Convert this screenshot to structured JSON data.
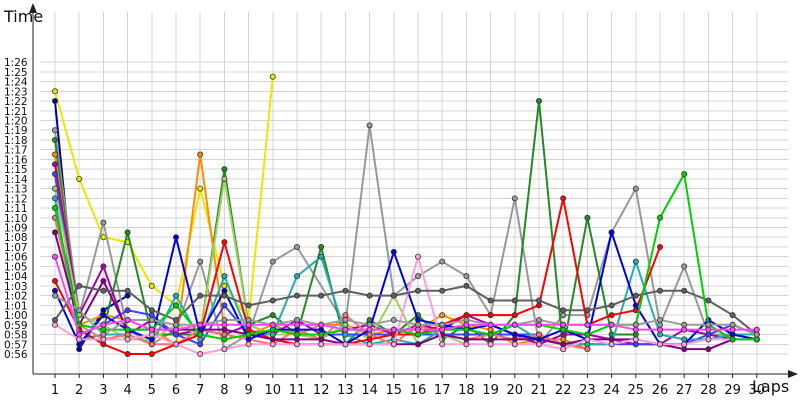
{
  "chart_data": {
    "type": "line",
    "xlabel": "Laps",
    "ylabel": "Time",
    "x": [
      1,
      2,
      3,
      4,
      5,
      6,
      7,
      8,
      9,
      10,
      11,
      12,
      13,
      14,
      15,
      16,
      17,
      18,
      19,
      20,
      21,
      22,
      23,
      24,
      25,
      26,
      27,
      28,
      29,
      30
    ],
    "x_tick_labels": [
      "1",
      "2",
      "3",
      "4",
      "5",
      "6",
      "7",
      "8",
      "9",
      "10",
      "11",
      "12",
      "13",
      "14",
      "15",
      "16",
      "17",
      "18",
      "19",
      "20",
      "21",
      "22",
      "23",
      "24",
      "25",
      "26",
      "27",
      "28",
      "29",
      "30"
    ],
    "y_tick_labels": [
      "0:56",
      "0:57",
      "0:58",
      "0:59",
      "1:00",
      "1:01",
      "1:02",
      "1:03",
      "1:04",
      "1:05",
      "1:06",
      "1:07",
      "1:08",
      "1:09",
      "1:10",
      "1:11",
      "1:12",
      "1:13",
      "1:14",
      "1:15",
      "1:16",
      "1:17",
      "1:18",
      "1:19",
      "1:20",
      "1:21",
      "1:22",
      "1:23",
      "1:24",
      "1:25",
      "1:26"
    ],
    "y_unit": "seconds",
    "ylim": [
      54,
      90
    ],
    "grid": true,
    "legend": "none",
    "series": [
      {
        "color": "#e8e800",
        "values": [
          83,
          74,
          68,
          67.5,
          63,
          61,
          73,
          63,
          59.5,
          84.5,
          null,
          null,
          null,
          null,
          null,
          null,
          null,
          null,
          null,
          null,
          null,
          null,
          null,
          null,
          null,
          null,
          null,
          null,
          null,
          null
        ]
      },
      {
        "color": "#0000a0",
        "values": [
          82,
          56.5,
          60.5,
          62,
          null,
          null,
          null,
          null,
          null,
          null,
          null,
          null,
          null,
          null,
          null,
          null,
          null,
          null,
          null,
          null,
          null,
          null,
          null,
          null,
          null,
          null,
          null,
          null,
          null,
          null
        ]
      },
      {
        "color": "#999999",
        "values": [
          79,
          60,
          69.5,
          58.5,
          57,
          58.5,
          65.5,
          56.5,
          58,
          65.5,
          67,
          null,
          59,
          79.5,
          62,
          64,
          65.5,
          64,
          60,
          72,
          57,
          60,
          60,
          68.5,
          73,
          59,
          65,
          58,
          58,
          57.5
        ]
      },
      {
        "color": "#228b22",
        "values": [
          78,
          59,
          58.5,
          68.5,
          58,
          58,
          58,
          75,
          59,
          60,
          58,
          67,
          57,
          59.5,
          58,
          60,
          57.5,
          59,
          57,
          60,
          82,
          56.5,
          70,
          58,
          58,
          null,
          null,
          null,
          null,
          null
        ]
      },
      {
        "color": "#ff8c00",
        "values": [
          76.5,
          59,
          60,
          59.5,
          58.5,
          57,
          76.5,
          58.5,
          58,
          59,
          58,
          59,
          59,
          58,
          58.5,
          58.5,
          60,
          59,
          58.5,
          57,
          57.5,
          57.5,
          56.5,
          null,
          null,
          null,
          null,
          null,
          null,
          null
        ]
      },
      {
        "color": "#aa00aa",
        "values": [
          75.5,
          60,
          65,
          58,
          59.5,
          58,
          58.5,
          58,
          59,
          58,
          59.5,
          58,
          58.5,
          59,
          58,
          59,
          58.5,
          60,
          59,
          58,
          57,
          58,
          58,
          57.5,
          57,
          57,
          58.5,
          58,
          57.5,
          57.5
        ]
      },
      {
        "color": "#4040ff",
        "values": [
          74.5,
          58,
          59,
          60.5,
          60,
          58,
          57,
          61,
          58,
          58,
          58,
          58,
          58,
          58,
          58,
          58,
          58,
          58,
          58,
          58,
          58,
          57,
          57,
          57,
          57,
          57,
          57,
          58,
          59,
          58
        ]
      },
      {
        "color": "#a0d060",
        "values": [
          73,
          60,
          59,
          57.5,
          57.5,
          59,
          58,
          74,
          59,
          58,
          58,
          57.5,
          59,
          57.5,
          62,
          57,
          58,
          57,
          null,
          null,
          null,
          null,
          null,
          null,
          null,
          null,
          null,
          null,
          null,
          null
        ]
      },
      {
        "color": "#20b0b0",
        "values": [
          72,
          57.5,
          58,
          58,
          57,
          62,
          57.5,
          64,
          58,
          58,
          64,
          66,
          58,
          57,
          57.5,
          57,
          58.5,
          58.5,
          58,
          59,
          57.5,
          57,
          57,
          57,
          65.5,
          58,
          57.5,
          57.5,
          58,
          58
        ]
      },
      {
        "color": "#ff7070",
        "values": [
          70,
          59,
          57.5,
          58,
          57,
          57,
          58.5,
          58,
          57.5,
          57,
          58.5,
          57.5,
          60,
          58,
          57,
          59,
          58,
          57.5,
          58,
          57.5,
          58,
          57,
          56.5,
          null,
          null,
          null,
          null,
          null,
          null,
          null
        ]
      },
      {
        "color": "#ff0000",
        "values": [
          63.5,
          58.5,
          57,
          56,
          56,
          57,
          58,
          67.5,
          58.5,
          57.5,
          57,
          57,
          57,
          57.5,
          58,
          58,
          59,
          60,
          60,
          60,
          61,
          72,
          59,
          60,
          60.5,
          67,
          null,
          null,
          null,
          null
        ]
      },
      {
        "color": "#800080",
        "values": [
          68.5,
          59,
          63.5,
          58.5,
          58.5,
          58.5,
          58.5,
          58.5,
          58,
          57.5,
          57.5,
          57.5,
          57,
          57,
          57,
          57,
          58,
          57.5,
          57.5,
          57.5,
          57.5,
          57,
          57.5,
          57.5,
          57.5,
          57,
          56.5,
          56.5,
          57.5,
          57.5
        ]
      },
      {
        "color": "#0000dd",
        "values": [
          62.5,
          57,
          60,
          58.5,
          57.5,
          68,
          58,
          62.5,
          57.5,
          58.5,
          58.5,
          58.5,
          57,
          58.5,
          66.5,
          59.5,
          59,
          58.5,
          59,
          58,
          57.5,
          58.5,
          57.5,
          68.5,
          61,
          57,
          57,
          59.5,
          58,
          57.5
        ]
      },
      {
        "color": "#ff9fdf",
        "values": [
          59,
          57.5,
          57.5,
          57.5,
          58,
          57,
          56,
          56.5,
          57,
          57,
          57,
          57,
          57,
          57,
          57,
          66,
          57,
          57,
          57,
          57,
          57,
          56.5,
          57.5,
          57,
          57.5,
          57,
          57,
          57.5,
          57.5,
          57.5
        ]
      },
      {
        "color": "#606060",
        "values": [
          59.5,
          63,
          62.5,
          62.5,
          60.5,
          59.5,
          62,
          62,
          61,
          61.5,
          62,
          62,
          62.5,
          62,
          62,
          62.5,
          62.5,
          63,
          61.5,
          61.5,
          61.5,
          60.5,
          60.5,
          61,
          62,
          62.5,
          62.5,
          61.5,
          60,
          58
        ]
      },
      {
        "color": "#00d000",
        "values": [
          71,
          59,
          58.5,
          58.5,
          58.5,
          61,
          58,
          57.5,
          58,
          58.5,
          58,
          58,
          58.5,
          58.5,
          58.5,
          58,
          58.5,
          58.5,
          58,
          59,
          59,
          58.5,
          58,
          59,
          59,
          70,
          74.5,
          59,
          57.5,
          57.5
        ]
      },
      {
        "color": "#9c9c9c",
        "values": [
          62,
          60.5,
          58,
          59.5,
          59.5,
          59,
          59,
          59.5,
          59.5,
          59,
          59.5,
          59,
          59.5,
          59,
          59.5,
          59,
          59,
          59.5,
          59,
          59,
          59.5,
          59,
          59,
          59,
          59,
          59.5,
          59,
          59,
          59,
          58
        ]
      },
      {
        "color": "#ff44ff",
        "values": [
          66,
          58,
          59,
          59.5,
          58.5,
          58.5,
          59,
          59,
          59,
          59,
          59,
          59,
          58.5,
          58.5,
          58.5,
          58.5,
          58.5,
          59,
          59,
          59,
          59,
          59,
          59,
          59,
          58.5,
          58.5,
          58.5,
          58.5,
          58.5,
          58.5
        ]
      }
    ]
  }
}
